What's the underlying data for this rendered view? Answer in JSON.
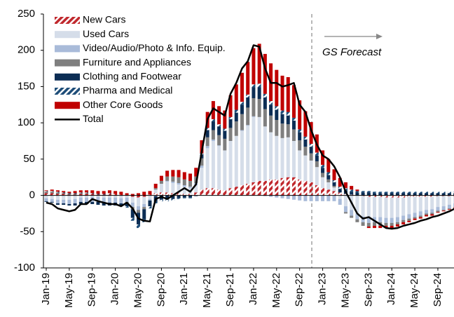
{
  "chart_data": {
    "type": "stacked-bar-line",
    "annotation": "GS Forecast",
    "categories": [
      "Jan-19",
      null,
      null,
      null,
      "May-19",
      null,
      null,
      null,
      "Sep-19",
      null,
      null,
      null,
      "Jan-20",
      null,
      null,
      null,
      "May-20",
      null,
      null,
      null,
      "Sep-20",
      null,
      null,
      null,
      "Jan-21",
      null,
      null,
      null,
      "May-21",
      null,
      null,
      null,
      "Sep-21",
      null,
      null,
      null,
      "Jan-22",
      null,
      null,
      null,
      "May-22",
      null,
      null,
      null,
      "Sep-22",
      null,
      null,
      null,
      "Jan-23",
      null,
      null,
      null,
      "May-23",
      null,
      null,
      null,
      "Sep-23",
      null,
      null,
      null,
      "Jan-24",
      null,
      null,
      null,
      "May-24",
      null,
      null,
      null,
      "Sep-24",
      null,
      null,
      null
    ],
    "ylim": [
      -100,
      250
    ],
    "yticks": [
      -100,
      -50,
      0,
      50,
      100,
      150,
      200,
      250
    ],
    "series": [
      {
        "name": "New Cars",
        "color": "#c0282d",
        "hatched": true,
        "values": [
          3,
          3,
          2,
          2,
          1,
          1,
          2,
          2,
          2,
          1,
          1,
          2,
          2,
          1,
          0,
          -2,
          -3,
          -2,
          1,
          3,
          4,
          4,
          3,
          3,
          2,
          2,
          4,
          8,
          10,
          10,
          8,
          7,
          10,
          12,
          14,
          16,
          18,
          20,
          20,
          22,
          22,
          24,
          25,
          25,
          22,
          20,
          18,
          14,
          10,
          8,
          6,
          4,
          2,
          1,
          0,
          -1,
          -2,
          -2,
          -2,
          -3,
          -3,
          -3,
          -3,
          -2,
          -2,
          -2,
          -2,
          -2,
          -1,
          -1,
          -1,
          -1
        ]
      },
      {
        "name": "Used Cars",
        "color": "#d5dde9",
        "values": [
          -4,
          -5,
          -6,
          -6,
          -6,
          -5,
          -3,
          -3,
          -2,
          -2,
          -3,
          -3,
          -3,
          -4,
          -3,
          -8,
          -12,
          -10,
          -5,
          5,
          12,
          15,
          14,
          12,
          10,
          8,
          10,
          30,
          55,
          65,
          60,
          55,
          65,
          70,
          75,
          80,
          90,
          88,
          75,
          65,
          60,
          55,
          55,
          50,
          40,
          35,
          30,
          25,
          15,
          10,
          5,
          -5,
          -15,
          -20,
          -25,
          -28,
          -28,
          -28,
          -28,
          -28,
          -28,
          -27,
          -25,
          -24,
          -22,
          -20,
          -18,
          -17,
          -15,
          -14,
          -12,
          -10
        ]
      },
      {
        "name": "Video/Audio/Photo & Info. Equip.",
        "color": "#a9bbd9",
        "values": [
          -4,
          -4,
          -5,
          -5,
          -6,
          -6,
          -6,
          -6,
          -7,
          -7,
          -7,
          -7,
          -7,
          -7,
          -6,
          -6,
          -5,
          -4,
          -2,
          -1,
          0,
          1,
          2,
          2,
          2,
          2,
          3,
          3,
          3,
          2,
          1,
          0,
          0,
          0,
          1,
          1,
          1,
          0,
          -1,
          -2,
          -3,
          -4,
          -5,
          -6,
          -7,
          -8,
          -8,
          -8,
          -8,
          -8,
          -8,
          -8,
          -8,
          -8,
          -8,
          -8,
          -8,
          -7,
          -7,
          -7,
          -7,
          -7,
          -6,
          -6,
          -6,
          -6,
          -5,
          -5,
          -5,
          -5,
          -5,
          -5
        ]
      },
      {
        "name": "Furniture and Appliances",
        "color": "#7f7f7f",
        "values": [
          2,
          2,
          2,
          1,
          1,
          1,
          1,
          1,
          0,
          0,
          0,
          0,
          0,
          0,
          -1,
          -3,
          -4,
          -3,
          0,
          2,
          4,
          6,
          7,
          8,
          8,
          8,
          9,
          10,
          12,
          13,
          14,
          16,
          18,
          20,
          22,
          24,
          25,
          25,
          24,
          23,
          22,
          20,
          18,
          16,
          14,
          12,
          10,
          8,
          6,
          4,
          2,
          0,
          -2,
          -3,
          -4,
          -5,
          -5,
          -5,
          -5,
          -4,
          -4,
          -3,
          -3,
          -3,
          -2,
          -2,
          -2,
          -2,
          -2,
          -1,
          -1,
          -1
        ]
      },
      {
        "name": "Clothing and Footwear",
        "color": "#0c2d54",
        "values": [
          -1,
          -1,
          -2,
          -2,
          -2,
          -3,
          -3,
          -3,
          -3,
          -4,
          -4,
          -4,
          -4,
          -4,
          -5,
          -12,
          -16,
          -14,
          -8,
          -8,
          -6,
          -6,
          -5,
          -4,
          -3,
          -3,
          -1,
          5,
          10,
          12,
          12,
          11,
          12,
          12,
          13,
          14,
          15,
          16,
          16,
          15,
          14,
          13,
          12,
          12,
          11,
          10,
          9,
          8,
          7,
          6,
          5,
          5,
          5,
          4,
          4,
          4,
          4,
          3,
          3,
          3,
          3,
          3,
          3,
          3,
          3,
          3,
          3,
          3,
          3,
          3,
          3,
          3
        ]
      },
      {
        "name": "Pharma and Medical",
        "color": "#1f4e79",
        "hatched": true,
        "values": [
          1,
          1,
          1,
          1,
          1,
          1,
          1,
          1,
          1,
          1,
          1,
          1,
          0,
          0,
          -2,
          -4,
          -5,
          -4,
          -3,
          -2,
          -2,
          -2,
          -2,
          -1,
          -1,
          -1,
          0,
          2,
          3,
          3,
          3,
          3,
          3,
          4,
          4,
          4,
          4,
          5,
          5,
          5,
          5,
          5,
          5,
          4,
          4,
          4,
          4,
          4,
          4,
          4,
          3,
          3,
          3,
          3,
          2,
          2,
          2,
          2,
          2,
          2,
          2,
          2,
          2,
          2,
          2,
          2,
          2,
          2,
          2,
          2,
          2,
          2
        ]
      },
      {
        "name": "Other Core Goods",
        "color": "#c00000",
        "values": [
          1,
          2,
          2,
          2,
          2,
          3,
          3,
          3,
          4,
          4,
          4,
          4,
          4,
          4,
          3,
          2,
          3,
          5,
          5,
          6,
          7,
          8,
          9,
          10,
          10,
          10,
          12,
          18,
          22,
          25,
          25,
          25,
          30,
          35,
          40,
          45,
          50,
          55,
          55,
          52,
          50,
          48,
          48,
          45,
          40,
          35,
          30,
          25,
          20,
          18,
          15,
          12,
          8,
          5,
          2,
          0,
          -2,
          -3,
          -3,
          -3,
          -3,
          -3,
          -3,
          -2,
          -2,
          -2,
          -2,
          -2,
          -1,
          -1,
          -1,
          -1
        ]
      }
    ],
    "line": {
      "name": "Total",
      "color": "#000000",
      "values": [
        -10,
        -12,
        -18,
        -20,
        -22,
        -20,
        -12,
        -12,
        -5,
        -8,
        -10,
        -12,
        -12,
        -15,
        -10,
        -18,
        -32,
        -35,
        -36,
        -5,
        -2,
        -5,
        0,
        5,
        10,
        5,
        15,
        60,
        105,
        120,
        115,
        110,
        140,
        155,
        175,
        185,
        207,
        205,
        175,
        155,
        155,
        150,
        152,
        155,
        125,
        115,
        90,
        70,
        55,
        50,
        40,
        25,
        5,
        -10,
        -25,
        -32,
        -30,
        -35,
        -40,
        -45,
        -46,
        -45,
        -42,
        -40,
        -38,
        -35,
        -33,
        -30,
        -28,
        -25,
        -22,
        -18
      ]
    }
  }
}
